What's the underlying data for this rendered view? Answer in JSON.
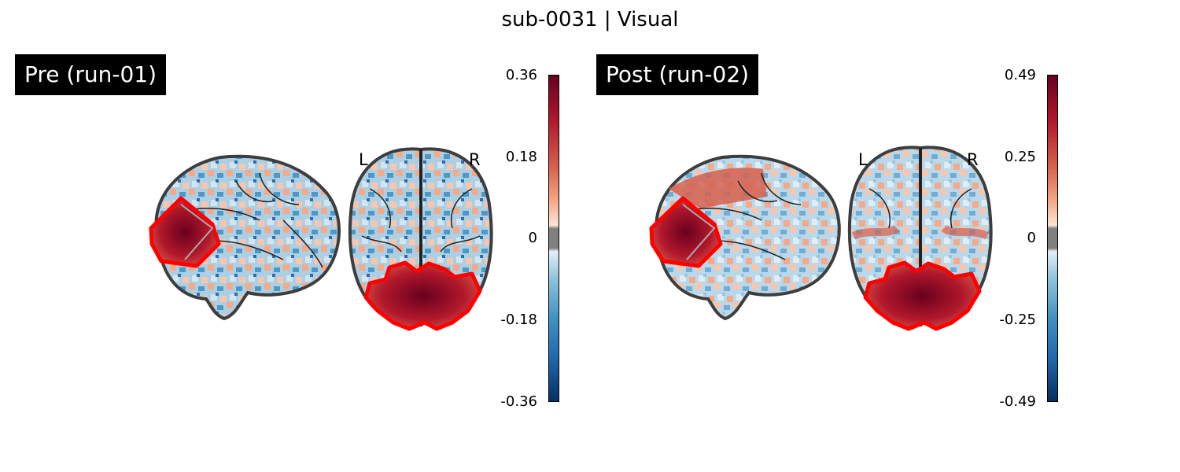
{
  "figure": {
    "title": "sub-0031 | Visual"
  },
  "panels": [
    {
      "title": "Pre (run-01)",
      "colorbar": {
        "ticks": [
          "0.36",
          "0.18",
          "0",
          "-0.18",
          "-0.36"
        ],
        "vmin": -0.36,
        "vmax": 0.36
      },
      "orientation": {
        "left": "L",
        "right": "R"
      }
    },
    {
      "title": "Post (run-02)",
      "colorbar": {
        "ticks": [
          "0.49",
          "0.25",
          "0",
          "-0.25",
          "-0.49"
        ],
        "vmin": -0.49,
        "vmax": 0.49
      },
      "orientation": {
        "left": "L",
        "right": "R"
      }
    }
  ],
  "colors": {
    "positive_max": "#67001f",
    "negative_max": "#053061",
    "threshold_gray": "#808080",
    "roi_outline": "#ff0000",
    "brain_outline": "#333333"
  },
  "colormap": "RdBu_r"
}
